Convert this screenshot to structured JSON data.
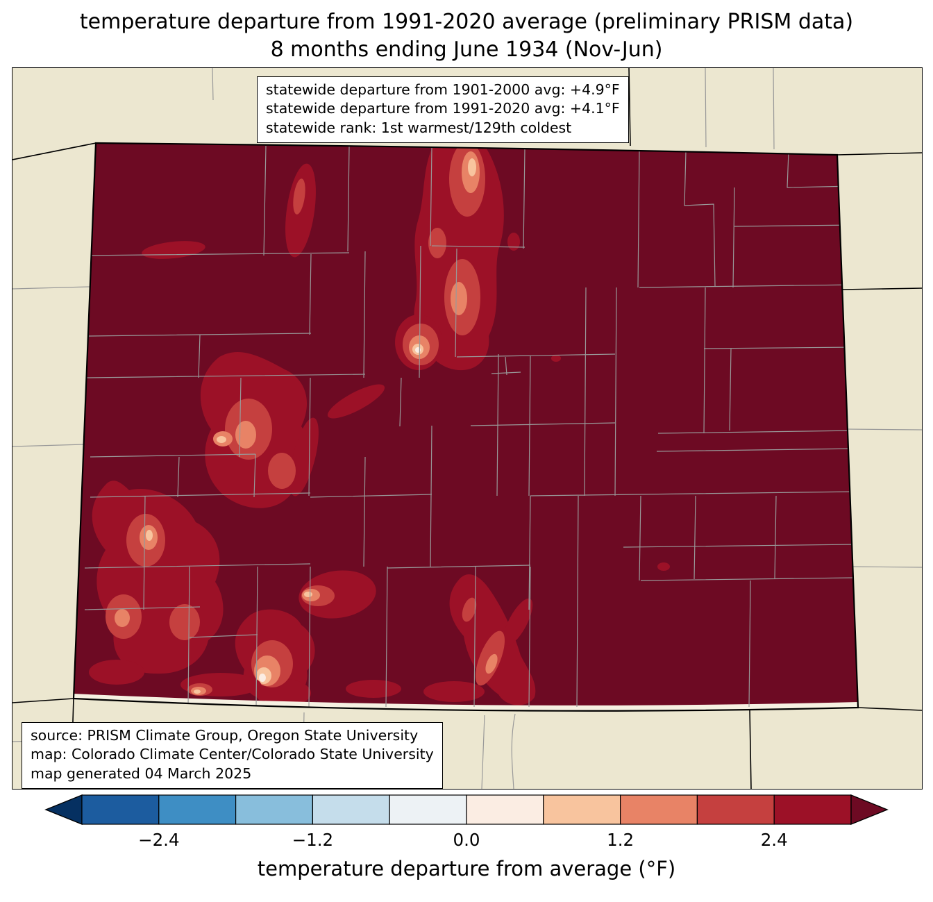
{
  "title": {
    "line1": "temperature departure from 1991-2020 average (preliminary PRISM data)",
    "line2": "8 months ending June 1934 (Nov-Jun)"
  },
  "stats_box": {
    "line1": "statewide departure from 1901-2000 avg: +4.9°F",
    "line2": "statewide departure from 1991-2020 avg: +4.1°F",
    "line3": "statewide rank: 1st warmest/129th coldest"
  },
  "source_box": {
    "line1": "source: PRISM Climate Group, Oregon State University",
    "line2": "map: Colorado Climate Center/Colorado State University",
    "line3": "map generated 04 March 2025"
  },
  "colorbar": {
    "label": "temperature departure from average (°F)",
    "ticks": [
      "−2.4",
      "−1.2",
      "0.0",
      "1.2",
      "2.4"
    ],
    "tick_positions": [
      0.1,
      0.3,
      0.5,
      0.7,
      0.9
    ],
    "range": [
      -3.0,
      3.0
    ],
    "segment_colors": [
      "#1c5c9f",
      "#3e8ec4",
      "#88bedc",
      "#c5ddeb",
      "#edf2f5",
      "#fbede3",
      "#f8c49e",
      "#e88366",
      "#c5403f",
      "#9c1127"
    ],
    "under_color": "#053061",
    "over_color": "#6d0a23"
  },
  "map": {
    "background_color": "#ece7d0",
    "state_fill_color": "#6d0a23",
    "county_line_color": "#999999",
    "border_color": "#000000"
  }
}
